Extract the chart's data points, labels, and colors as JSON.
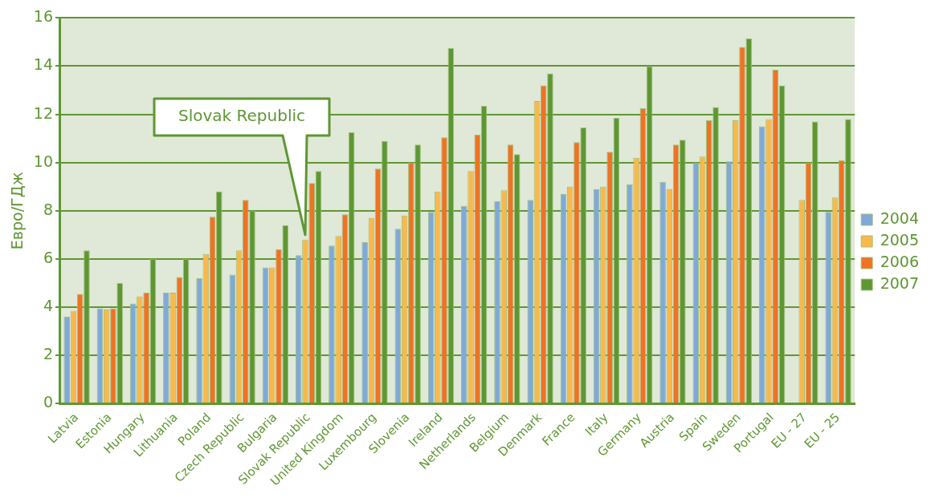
{
  "chart_data": {
    "type": "bar",
    "ylabel": "Евро/ГДж",
    "categories": [
      "Latvia",
      "Estonia",
      "Hungary",
      "Lithuania",
      "Poland",
      "Czech Republic",
      "Bulgaria",
      "Slovak Republic",
      "United Kingdom",
      "Luxembourg",
      "Slovenia",
      "Ireland",
      "Netherlands",
      "Belgium",
      "Denmark",
      "France",
      "Italy",
      "Germany",
      "Austria",
      "Spain",
      "Sweden",
      "Portugal",
      "EU - 27",
      "EU - 25"
    ],
    "series": [
      {
        "name": "2004",
        "color": "#7fa9d8",
        "values": [
          3.6,
          3.95,
          4.15,
          4.6,
          5.2,
          5.35,
          5.65,
          6.15,
          6.55,
          6.7,
          7.25,
          7.95,
          8.2,
          8.4,
          8.45,
          8.7,
          8.9,
          9.1,
          9.2,
          10.0,
          10.05,
          11.5,
          null,
          7.95
        ]
      },
      {
        "name": "2005",
        "color": "#fbb84a",
        "values": [
          3.85,
          3.9,
          4.45,
          4.6,
          6.2,
          6.35,
          5.65,
          6.8,
          6.95,
          7.7,
          7.8,
          8.8,
          9.65,
          8.85,
          12.55,
          9.0,
          9.0,
          10.2,
          8.9,
          10.25,
          11.75,
          11.8,
          8.45,
          8.55
        ]
      },
      {
        "name": "2006",
        "color": "#f07222",
        "values": [
          4.55,
          3.95,
          4.6,
          5.25,
          7.75,
          8.45,
          6.4,
          9.15,
          7.85,
          9.75,
          10.0,
          11.05,
          11.15,
          10.75,
          13.2,
          10.85,
          10.45,
          12.25,
          10.75,
          11.75,
          14.8,
          13.85,
          10.0,
          10.1
        ]
      },
      {
        "name": "2007",
        "color": "#5e9732",
        "values": [
          6.35,
          5.0,
          6.0,
          6.0,
          8.8,
          8.0,
          7.4,
          9.65,
          11.25,
          10.9,
          10.75,
          14.75,
          12.35,
          10.35,
          13.7,
          11.45,
          11.85,
          14.0,
          10.95,
          12.3,
          15.15,
          13.2,
          11.7,
          11.8
        ]
      }
    ],
    "ylim": [
      0,
      16
    ],
    "yticks": [
      0,
      2,
      4,
      6,
      8,
      10,
      12,
      14,
      16
    ],
    "grid": "y",
    "legend": "right",
    "annotations": [
      "Slovak Republic"
    ]
  }
}
